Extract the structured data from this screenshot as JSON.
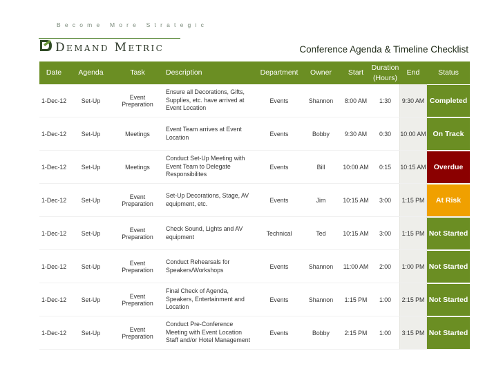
{
  "logo": {
    "tagline": "Become More Strategic",
    "brand": "Demand Metric"
  },
  "doc_title": "Conference Agenda & Timeline Checklist",
  "columns": {
    "date": "Date",
    "agenda": "Agenda",
    "task": "Task",
    "description": "Description",
    "department": "Department",
    "owner": "Owner",
    "start": "Start",
    "duration": "Duration (Hours)",
    "end": "End",
    "status": "Status"
  },
  "status_colors": {
    "Completed": "#6b8e23",
    "On Track": "#6b8e23",
    "Overdue": "#8b0000",
    "At Risk": "#f0a000",
    "Not Started": "#6b8e23"
  },
  "rows": [
    {
      "date": "1-Dec-12",
      "agenda": "Set-Up",
      "task": "Event Preparation",
      "description": "Ensure all Decorations, Gifts, Supplies, etc. have arrived at Event Location",
      "department": "Events",
      "owner": "Shannon",
      "start": "8:00 AM",
      "duration": "1:30",
      "end": "9:30 AM",
      "status": "Completed"
    },
    {
      "date": "1-Dec-12",
      "agenda": "Set-Up",
      "task": "Meetings",
      "description": "Event Team arrives at Event Location",
      "department": "Events",
      "owner": "Bobby",
      "start": "9:30 AM",
      "duration": "0:30",
      "end": "10:00 AM",
      "status": "On Track"
    },
    {
      "date": "1-Dec-12",
      "agenda": "Set-Up",
      "task": "Meetings",
      "description": "Conduct Set-Up Meeting with Event Team to Delegate Responsibilites",
      "department": "Events",
      "owner": "Bill",
      "start": "10:00 AM",
      "duration": "0:15",
      "end": "10:15 AM",
      "status": "Overdue"
    },
    {
      "date": "1-Dec-12",
      "agenda": "Set-Up",
      "task": "Event Preparation",
      "description": "Set-Up Decorations, Stage, AV equipment, etc.",
      "department": "Events",
      "owner": "Jim",
      "start": "10:15 AM",
      "duration": "3:00",
      "end": "1:15 PM",
      "status": "At Risk"
    },
    {
      "date": "1-Dec-12",
      "agenda": "Set-Up",
      "task": "Event Preparation",
      "description": "Check Sound, Lights and AV equipment",
      "department": "Technical",
      "owner": "Ted",
      "start": "10:15 AM",
      "duration": "3:00",
      "end": "1:15 PM",
      "status": "Not Started"
    },
    {
      "date": "1-Dec-12",
      "agenda": "Set-Up",
      "task": "Event Preparation",
      "description": "Conduct Rehearsals for Speakers/Workshops",
      "department": "Events",
      "owner": "Shannon",
      "start": "11:00 AM",
      "duration": "2:00",
      "end": "1:00 PM",
      "status": "Not Started"
    },
    {
      "date": "1-Dec-12",
      "agenda": "Set-Up",
      "task": "Event Preparation",
      "description": "Final Check of Agenda, Speakers, Entertainment and Location",
      "department": "Events",
      "owner": "Shannon",
      "start": "1:15 PM",
      "duration": "1:00",
      "end": "2:15 PM",
      "status": "Not Started"
    },
    {
      "date": "1-Dec-12",
      "agenda": "Set-Up",
      "task": "Event Preparation",
      "description": "Conduct Pre-Conference Meeting with Event Location Staff and/or Hotel Management",
      "department": "Events",
      "owner": "Bobby",
      "start": "2:15 PM",
      "duration": "1:00",
      "end": "3:15 PM",
      "status": "Not Started"
    }
  ]
}
